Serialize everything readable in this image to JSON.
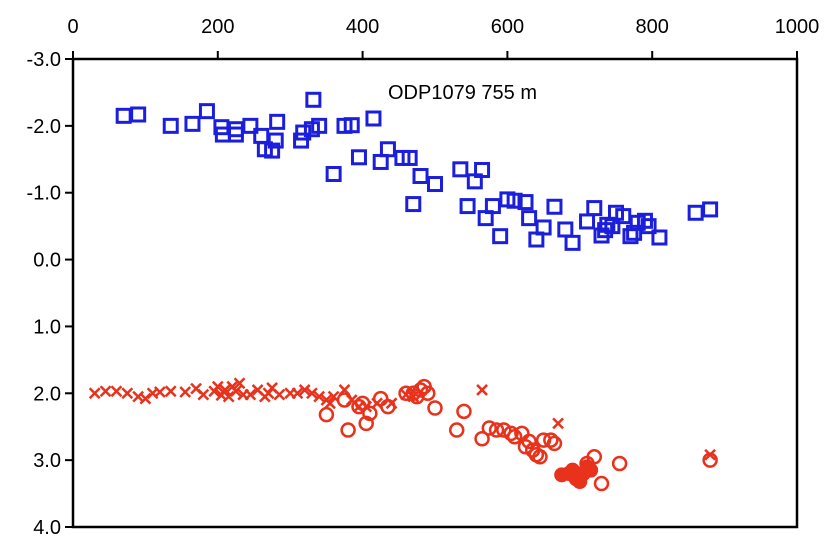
{
  "chart_data": {
    "type": "scatter",
    "annotation": "ODP1079 755 m",
    "x_axis": {
      "position": "top",
      "range": [
        0,
        1000
      ],
      "ticks": [
        0,
        200,
        400,
        600,
        800,
        1000
      ],
      "tick_labels": [
        "0",
        "200",
        "400",
        "600",
        "800",
        "1000"
      ]
    },
    "y_axis": {
      "position": "left",
      "range": [
        -3.0,
        4.0
      ],
      "reversed": true,
      "ticks": [
        -3,
        -2,
        -1,
        0,
        1,
        2,
        3,
        4
      ],
      "tick_labels": [
        "-3.0",
        "-2.0",
        "-1.0",
        "0.0",
        "1.0",
        "2.0",
        "3.0",
        "4.0"
      ]
    },
    "grid": false,
    "colors": {
      "blue_squares": "#1b1fdc",
      "red_markers": "#e8321c"
    },
    "series": [
      {
        "marker": "open-square",
        "color": "#1b1fdc",
        "points": [
          [
            70,
            -2.15
          ],
          [
            90,
            -2.17
          ],
          [
            135,
            -2.0
          ],
          [
            165,
            -2.03
          ],
          [
            185,
            -2.22
          ],
          [
            205,
            -1.98
          ],
          [
            207,
            -1.87
          ],
          [
            225,
            -1.87
          ],
          [
            225,
            -1.95
          ],
          [
            245,
            -2.0
          ],
          [
            260,
            -1.85
          ],
          [
            265,
            -1.65
          ],
          [
            275,
            -1.63
          ],
          [
            280,
            -1.78
          ],
          [
            282,
            -2.06
          ],
          [
            315,
            -1.78
          ],
          [
            318,
            -1.9
          ],
          [
            332,
            -2.39
          ],
          [
            340,
            -2.0
          ],
          [
            330,
            -1.95
          ],
          [
            360,
            -1.28
          ],
          [
            375,
            -2.0
          ],
          [
            385,
            -2.01
          ],
          [
            395,
            -1.53
          ],
          [
            415,
            -2.11
          ],
          [
            425,
            -1.46
          ],
          [
            435,
            -1.65
          ],
          [
            455,
            -1.52
          ],
          [
            465,
            -1.52
          ],
          [
            470,
            -0.83
          ],
          [
            480,
            -1.25
          ],
          [
            500,
            -1.13
          ],
          [
            535,
            -1.35
          ],
          [
            545,
            -0.8
          ],
          [
            555,
            -1.17
          ],
          [
            565,
            -1.34
          ],
          [
            570,
            -0.62
          ],
          [
            580,
            -0.8
          ],
          [
            590,
            -0.35
          ],
          [
            600,
            -0.9
          ],
          [
            610,
            -0.88
          ],
          [
            625,
            -0.86
          ],
          [
            630,
            -0.62
          ],
          [
            640,
            -0.3
          ],
          [
            650,
            -0.48
          ],
          [
            665,
            -0.79
          ],
          [
            680,
            -0.45
          ],
          [
            690,
            -0.25
          ],
          [
            710,
            -0.57
          ],
          [
            720,
            -0.77
          ],
          [
            730,
            -0.36
          ],
          [
            735,
            -0.44
          ],
          [
            738,
            -0.52
          ],
          [
            745,
            -0.5
          ],
          [
            750,
            -0.7
          ],
          [
            760,
            -0.65
          ],
          [
            770,
            -0.35
          ],
          [
            775,
            -0.4
          ],
          [
            780,
            -0.55
          ],
          [
            790,
            -0.58
          ],
          [
            795,
            -0.5
          ],
          [
            810,
            -0.33
          ],
          [
            860,
            -0.7
          ],
          [
            880,
            -0.75
          ]
        ]
      },
      {
        "marker": "cross",
        "color": "#e8321c",
        "points": [
          [
            30,
            2.0
          ],
          [
            45,
            1.97
          ],
          [
            60,
            1.97
          ],
          [
            75,
            2.0
          ],
          [
            90,
            2.05
          ],
          [
            100,
            2.08
          ],
          [
            110,
            2.0
          ],
          [
            120,
            1.98
          ],
          [
            135,
            1.97
          ],
          [
            155,
            1.98
          ],
          [
            170,
            1.93
          ],
          [
            180,
            2.02
          ],
          [
            195,
            1.97
          ],
          [
            200,
            1.9
          ],
          [
            205,
            2.03
          ],
          [
            210,
            1.95
          ],
          [
            215,
            2.05
          ],
          [
            220,
            1.9
          ],
          [
            225,
            1.97
          ],
          [
            230,
            1.85
          ],
          [
            235,
            2.02
          ],
          [
            245,
            2.02
          ],
          [
            255,
            1.95
          ],
          [
            265,
            2.05
          ],
          [
            270,
            2.0
          ],
          [
            275,
            1.92
          ],
          [
            285,
            2.02
          ],
          [
            300,
            2.0
          ],
          [
            310,
            2.0
          ],
          [
            320,
            1.95
          ],
          [
            330,
            2.0
          ],
          [
            340,
            2.05
          ],
          [
            350,
            2.1
          ],
          [
            355,
            2.15
          ],
          [
            360,
            2.05
          ],
          [
            375,
            1.95
          ],
          [
            385,
            2.1
          ],
          [
            395,
            2.2
          ],
          [
            405,
            2.2
          ],
          [
            420,
            2.15
          ],
          [
            440,
            2.15
          ],
          [
            460,
            2.02
          ],
          [
            470,
            2.05
          ],
          [
            565,
            1.95
          ],
          [
            670,
            2.45
          ],
          [
            880,
            2.92
          ]
        ]
      },
      {
        "marker": "open-circle",
        "color": "#e8321c",
        "points": [
          [
            350,
            2.32
          ],
          [
            375,
            2.1
          ],
          [
            380,
            2.55
          ],
          [
            395,
            2.2
          ],
          [
            400,
            2.15
          ],
          [
            410,
            2.3
          ],
          [
            405,
            2.45
          ],
          [
            425,
            2.08
          ],
          [
            435,
            2.2
          ],
          [
            460,
            2.0
          ],
          [
            470,
            2.0
          ],
          [
            475,
            2.05
          ],
          [
            480,
            1.95
          ],
          [
            485,
            1.9
          ],
          [
            490,
            2.0
          ],
          [
            500,
            2.22
          ],
          [
            530,
            2.55
          ],
          [
            540,
            2.27
          ],
          [
            565,
            2.68
          ],
          [
            575,
            2.52
          ],
          [
            585,
            2.55
          ],
          [
            595,
            2.55
          ],
          [
            605,
            2.6
          ],
          [
            610,
            2.65
          ],
          [
            620,
            2.6
          ],
          [
            625,
            2.8
          ],
          [
            630,
            2.72
          ],
          [
            635,
            2.85
          ],
          [
            640,
            2.92
          ],
          [
            645,
            2.95
          ],
          [
            650,
            2.7
          ],
          [
            660,
            2.7
          ],
          [
            665,
            2.75
          ],
          [
            700,
            3.22
          ],
          [
            710,
            3.05
          ],
          [
            720,
            2.95
          ],
          [
            730,
            3.35
          ],
          [
            755,
            3.05
          ],
          [
            880,
            3.0
          ]
        ]
      },
      {
        "marker": "filled-circle",
        "color": "#e8321c",
        "points": [
          [
            675,
            3.22
          ],
          [
            685,
            3.2
          ],
          [
            690,
            3.15
          ],
          [
            695,
            3.28
          ],
          [
            700,
            3.32
          ],
          [
            705,
            3.2
          ],
          [
            710,
            3.1
          ],
          [
            715,
            3.15
          ]
        ]
      }
    ]
  }
}
